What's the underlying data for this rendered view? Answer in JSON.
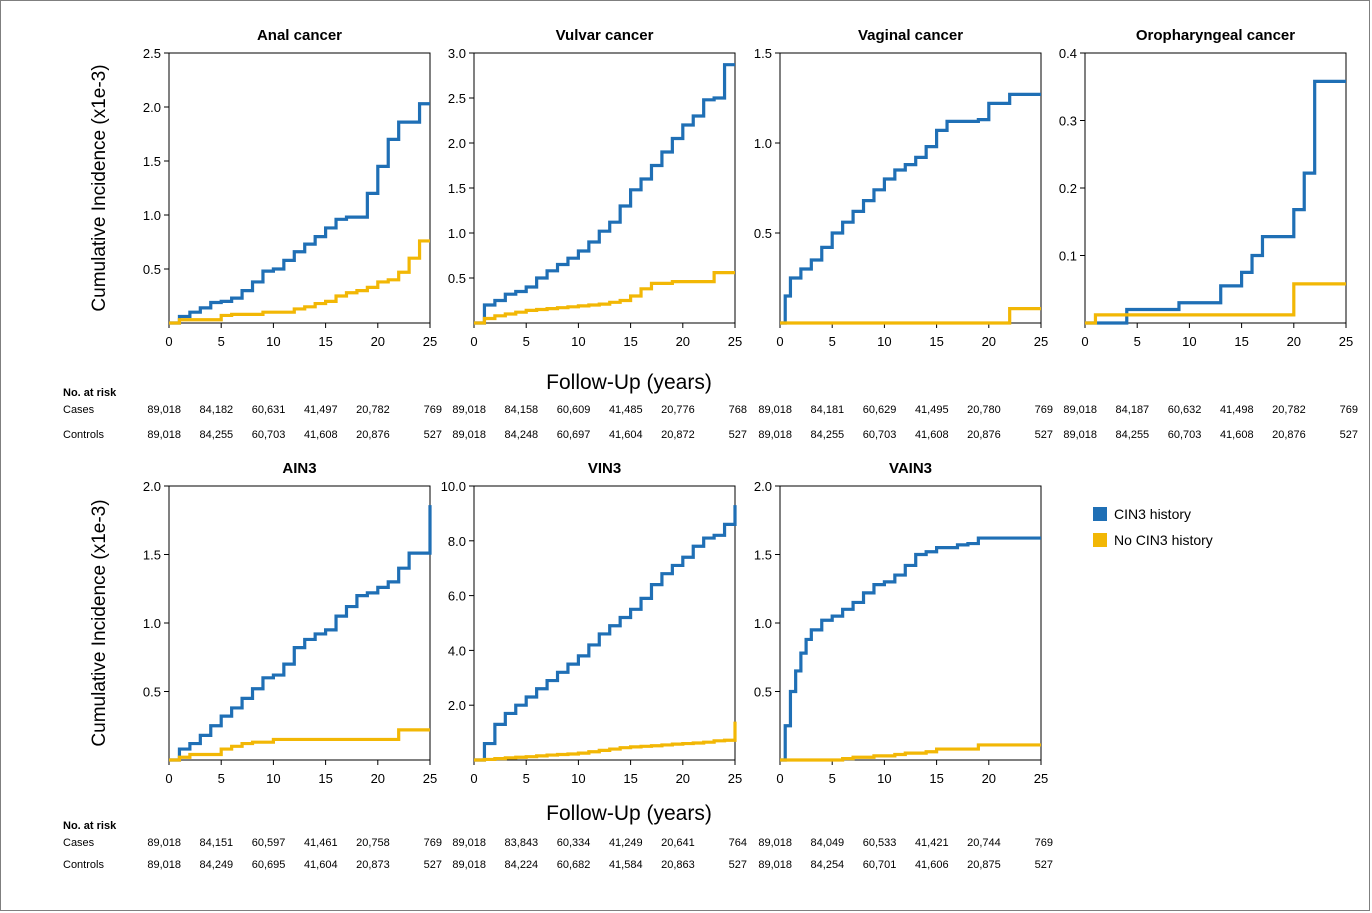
{
  "colors": {
    "cin3": "#1f6fb5",
    "no_cin3": "#f2b705"
  },
  "ylabel": "Cumulative Incidence (x1e-3)",
  "xlabel": "Follow-Up (years)",
  "legend": [
    {
      "label": "CIN3 history",
      "color": "#1f6fb5"
    },
    {
      "label": "No CIN3 history",
      "color": "#f2b705"
    }
  ],
  "risk_tables": [
    {
      "title": "No. at risk",
      "rows": [
        {
          "label": "Cases",
          "values": [
            [
              "89,018",
              "84,182",
              "60,631",
              "41,497",
              "20,782",
              "769"
            ],
            [
              "89,018",
              "84,158",
              "60,609",
              "41,485",
              "20,776",
              "768"
            ],
            [
              "89,018",
              "84,181",
              "60,629",
              "41,495",
              "20,780",
              "769"
            ],
            [
              "89,018",
              "84,187",
              "60,632",
              "41,498",
              "20,782",
              "769"
            ]
          ]
        },
        {
          "label": "Controls",
          "values": [
            [
              "89,018",
              "84,255",
              "60,703",
              "41,608",
              "20,876",
              "527"
            ],
            [
              "89,018",
              "84,248",
              "60,697",
              "41,604",
              "20,872",
              "527"
            ],
            [
              "89,018",
              "84,255",
              "60,703",
              "41,608",
              "20,876",
              "527"
            ],
            [
              "89,018",
              "84,255",
              "60,703",
              "41,608",
              "20,876",
              "527"
            ]
          ]
        }
      ]
    },
    {
      "title": "No. at risk",
      "rows": [
        {
          "label": "Cases",
          "values": [
            [
              "89,018",
              "84,151",
              "60,597",
              "41,461",
              "20,758",
              "769"
            ],
            [
              "89,018",
              "83,843",
              "60,334",
              "41,249",
              "20,641",
              "764"
            ],
            [
              "89,018",
              "84,049",
              "60,533",
              "41,421",
              "20,744",
              "769"
            ]
          ]
        },
        {
          "label": "Controls",
          "values": [
            [
              "89,018",
              "84,249",
              "60,695",
              "41,604",
              "20,873",
              "527"
            ],
            [
              "89,018",
              "84,224",
              "60,682",
              "41,584",
              "20,863",
              "527"
            ],
            [
              "89,018",
              "84,254",
              "60,701",
              "41,606",
              "20,875",
              "527"
            ]
          ]
        }
      ]
    }
  ],
  "chart_data": [
    {
      "type": "line",
      "title": "Anal cancer",
      "xlim": [
        0,
        25
      ],
      "ylim": [
        0,
        2.5
      ],
      "xticks": [
        "0",
        "5",
        "10",
        "15",
        "20",
        "25"
      ],
      "yticks": [
        "0.5",
        "1.0",
        "1.5",
        "2.0",
        "2.5"
      ],
      "series": [
        {
          "name": "CIN3 history",
          "x": [
            0,
            1,
            2,
            3,
            4,
            5,
            6,
            7,
            8,
            9,
            10,
            11,
            12,
            13,
            14,
            15,
            16,
            17,
            18,
            19,
            20,
            21,
            22,
            23,
            24,
            25
          ],
          "y": [
            0,
            0.06,
            0.1,
            0.14,
            0.19,
            0.2,
            0.23,
            0.3,
            0.38,
            0.48,
            0.5,
            0.58,
            0.66,
            0.73,
            0.8,
            0.88,
            0.96,
            0.98,
            0.98,
            1.2,
            1.45,
            1.7,
            1.86,
            1.86,
            2.03,
            2.03
          ]
        },
        {
          "name": "No CIN3 history",
          "x": [
            0,
            1,
            2,
            3,
            4,
            5,
            6,
            7,
            8,
            9,
            10,
            11,
            12,
            13,
            14,
            15,
            16,
            17,
            18,
            19,
            20,
            21,
            22,
            23,
            24,
            25
          ],
          "y": [
            0,
            0.03,
            0.03,
            0.03,
            0.03,
            0.07,
            0.08,
            0.08,
            0.08,
            0.1,
            0.1,
            0.1,
            0.13,
            0.15,
            0.18,
            0.2,
            0.25,
            0.28,
            0.3,
            0.33,
            0.38,
            0.4,
            0.47,
            0.6,
            0.76,
            0.76
          ]
        }
      ]
    },
    {
      "type": "line",
      "title": "Vulvar cancer",
      "xlim": [
        0,
        25
      ],
      "ylim": [
        0,
        3.0
      ],
      "xticks": [
        "0",
        "5",
        "10",
        "15",
        "20",
        "25"
      ],
      "yticks": [
        "0.5",
        "1.0",
        "1.5",
        "2.0",
        "2.5",
        "3.0"
      ],
      "series": [
        {
          "name": "CIN3 history",
          "x": [
            0,
            1,
            2,
            3,
            4,
            5,
            6,
            7,
            8,
            9,
            10,
            11,
            12,
            13,
            14,
            15,
            16,
            17,
            18,
            19,
            20,
            21,
            22,
            23,
            24,
            25
          ],
          "y": [
            0,
            0.2,
            0.25,
            0.32,
            0.35,
            0.4,
            0.5,
            0.58,
            0.65,
            0.72,
            0.8,
            0.9,
            1.02,
            1.12,
            1.3,
            1.48,
            1.6,
            1.75,
            1.9,
            2.05,
            2.2,
            2.3,
            2.48,
            2.5,
            2.87,
            2.87
          ]
        },
        {
          "name": "No CIN3 history",
          "x": [
            0,
            1,
            2,
            3,
            4,
            5,
            6,
            7,
            8,
            9,
            10,
            11,
            12,
            13,
            14,
            15,
            16,
            17,
            18,
            19,
            20,
            21,
            22,
            23,
            24,
            25
          ],
          "y": [
            0,
            0.05,
            0.08,
            0.1,
            0.12,
            0.14,
            0.15,
            0.16,
            0.17,
            0.18,
            0.19,
            0.2,
            0.21,
            0.23,
            0.25,
            0.3,
            0.38,
            0.44,
            0.44,
            0.46,
            0.46,
            0.46,
            0.46,
            0.56,
            0.56,
            0.56
          ]
        }
      ]
    },
    {
      "type": "line",
      "title": "Vaginal cancer",
      "xlim": [
        0,
        25
      ],
      "ylim": [
        0,
        1.5
      ],
      "xticks": [
        "0",
        "5",
        "10",
        "15",
        "20",
        "25"
      ],
      "yticks": [
        "0.5",
        "1.0",
        "1.5"
      ],
      "series": [
        {
          "name": "CIN3 history",
          "x": [
            0,
            0.5,
            1,
            2,
            3,
            4,
            5,
            6,
            7,
            8,
            9,
            10,
            11,
            12,
            13,
            14,
            15,
            16,
            17,
            18,
            19,
            20,
            21,
            22,
            23,
            24,
            25
          ],
          "y": [
            0,
            0.15,
            0.25,
            0.3,
            0.35,
            0.42,
            0.5,
            0.56,
            0.62,
            0.68,
            0.74,
            0.8,
            0.85,
            0.88,
            0.92,
            0.98,
            1.07,
            1.12,
            1.12,
            1.12,
            1.13,
            1.22,
            1.22,
            1.27,
            1.27,
            1.27,
            1.27
          ]
        },
        {
          "name": "No CIN3 history",
          "x": [
            0,
            1,
            2,
            3,
            4,
            5,
            10,
            15,
            20,
            22,
            23,
            25
          ],
          "y": [
            0,
            0,
            0,
            0,
            0,
            0,
            0,
            0,
            0,
            0.08,
            0.08,
            0.08
          ]
        }
      ]
    },
    {
      "type": "line",
      "title": "Oropharyngeal cancer",
      "xlim": [
        0,
        25
      ],
      "ylim": [
        0,
        0.4
      ],
      "xticks": [
        "0",
        "5",
        "10",
        "15",
        "20",
        "25"
      ],
      "yticks": [
        "0.1",
        "0.2",
        "0.3",
        "0.4"
      ],
      "series": [
        {
          "name": "CIN3 history",
          "x": [
            0,
            1,
            2,
            3,
            4,
            5,
            6,
            7,
            8,
            9,
            10,
            11,
            12,
            13,
            14,
            15,
            16,
            17,
            18,
            19,
            20,
            21,
            22,
            23,
            24,
            25
          ],
          "y": [
            0,
            0,
            0,
            0,
            0.02,
            0.02,
            0.02,
            0.02,
            0.02,
            0.03,
            0.03,
            0.03,
            0.03,
            0.055,
            0.055,
            0.075,
            0.1,
            0.128,
            0.128,
            0.128,
            0.168,
            0.222,
            0.358,
            0.358,
            0.358,
            0.358
          ]
        },
        {
          "name": "No CIN3 history",
          "x": [
            0,
            1,
            2,
            3,
            4,
            5,
            10,
            15,
            19,
            20,
            21,
            22,
            25
          ],
          "y": [
            0,
            0.012,
            0.012,
            0.012,
            0.012,
            0.012,
            0.012,
            0.012,
            0.012,
            0.058,
            0.058,
            0.058,
            0.058
          ]
        }
      ]
    },
    {
      "type": "line",
      "title": "AIN3",
      "xlim": [
        0,
        25
      ],
      "ylim": [
        0,
        2.0
      ],
      "xticks": [
        "0",
        "5",
        "10",
        "15",
        "20",
        "25"
      ],
      "yticks": [
        "0.5",
        "1.0",
        "1.5",
        "2.0"
      ],
      "series": [
        {
          "name": "CIN3 history",
          "x": [
            0,
            1,
            2,
            3,
            4,
            5,
            6,
            7,
            8,
            9,
            10,
            11,
            12,
            13,
            14,
            15,
            16,
            17,
            18,
            19,
            20,
            21,
            22,
            23,
            24,
            25
          ],
          "y": [
            0,
            0.08,
            0.12,
            0.18,
            0.25,
            0.32,
            0.38,
            0.45,
            0.52,
            0.6,
            0.62,
            0.7,
            0.82,
            0.88,
            0.92,
            0.95,
            1.05,
            1.12,
            1.2,
            1.22,
            1.26,
            1.3,
            1.4,
            1.51,
            1.51,
            1.86
          ]
        },
        {
          "name": "No CIN3 history",
          "x": [
            0,
            1,
            2,
            3,
            4,
            5,
            6,
            7,
            8,
            9,
            10,
            15,
            20,
            21,
            22,
            25
          ],
          "y": [
            0,
            0.02,
            0.04,
            0.04,
            0.04,
            0.08,
            0.1,
            0.12,
            0.13,
            0.13,
            0.15,
            0.15,
            0.15,
            0.15,
            0.22,
            0.22
          ]
        }
      ]
    },
    {
      "type": "line",
      "title": "VIN3",
      "xlim": [
        0,
        25
      ],
      "ylim": [
        0,
        10.0
      ],
      "xticks": [
        "0",
        "5",
        "10",
        "15",
        "20",
        "25"
      ],
      "yticks": [
        "2.0",
        "4.0",
        "6.0",
        "8.0",
        "10.0"
      ],
      "series": [
        {
          "name": "CIN3 history",
          "x": [
            0,
            1,
            2,
            3,
            4,
            5,
            6,
            7,
            8,
            9,
            10,
            11,
            12,
            13,
            14,
            15,
            16,
            17,
            18,
            19,
            20,
            21,
            22,
            23,
            24,
            25
          ],
          "y": [
            0,
            0.6,
            1.3,
            1.7,
            2.0,
            2.3,
            2.6,
            2.9,
            3.2,
            3.5,
            3.8,
            4.2,
            4.6,
            4.9,
            5.2,
            5.5,
            5.9,
            6.4,
            6.8,
            7.1,
            7.4,
            7.8,
            8.1,
            8.2,
            8.6,
            9.3
          ]
        },
        {
          "name": "No CIN3 history",
          "x": [
            0,
            1,
            2,
            3,
            4,
            5,
            6,
            7,
            8,
            9,
            10,
            11,
            12,
            13,
            14,
            15,
            16,
            17,
            18,
            19,
            20,
            21,
            22,
            23,
            24,
            25
          ],
          "y": [
            0,
            0.02,
            0.05,
            0.08,
            0.1,
            0.12,
            0.15,
            0.18,
            0.2,
            0.22,
            0.25,
            0.3,
            0.35,
            0.4,
            0.45,
            0.48,
            0.5,
            0.52,
            0.55,
            0.58,
            0.6,
            0.62,
            0.65,
            0.7,
            0.72,
            1.4
          ]
        }
      ]
    },
    {
      "type": "line",
      "title": "VAIN3",
      "xlim": [
        0,
        25
      ],
      "ylim": [
        0,
        2.0
      ],
      "xticks": [
        "0",
        "5",
        "10",
        "15",
        "20",
        "25"
      ],
      "yticks": [
        "0.5",
        "1.0",
        "1.5",
        "2.0"
      ],
      "series": [
        {
          "name": "CIN3 history",
          "x": [
            0,
            0.5,
            1,
            1.5,
            2,
            2.5,
            3,
            4,
            5,
            6,
            7,
            8,
            9,
            10,
            11,
            12,
            13,
            14,
            15,
            16,
            17,
            18,
            19,
            20,
            21,
            22,
            23,
            24,
            25
          ],
          "y": [
            0,
            0.25,
            0.5,
            0.65,
            0.78,
            0.88,
            0.95,
            1.02,
            1.05,
            1.1,
            1.15,
            1.22,
            1.28,
            1.3,
            1.35,
            1.42,
            1.5,
            1.52,
            1.55,
            1.55,
            1.57,
            1.58,
            1.62,
            1.62,
            1.62,
            1.62,
            1.62,
            1.62,
            1.62
          ]
        },
        {
          "name": "No CIN3 history",
          "x": [
            0,
            1,
            2,
            3,
            4,
            5,
            6,
            7,
            8,
            9,
            10,
            11,
            12,
            13,
            14,
            15,
            16,
            17,
            18,
            19,
            20,
            21,
            22,
            23,
            24,
            25
          ],
          "y": [
            0,
            0,
            0,
            0,
            0,
            0,
            0.01,
            0.02,
            0.02,
            0.03,
            0.03,
            0.04,
            0.05,
            0.05,
            0.06,
            0.08,
            0.08,
            0.08,
            0.08,
            0.11,
            0.11,
            0.11,
            0.11,
            0.11,
            0.11,
            0.11
          ]
        }
      ]
    }
  ]
}
